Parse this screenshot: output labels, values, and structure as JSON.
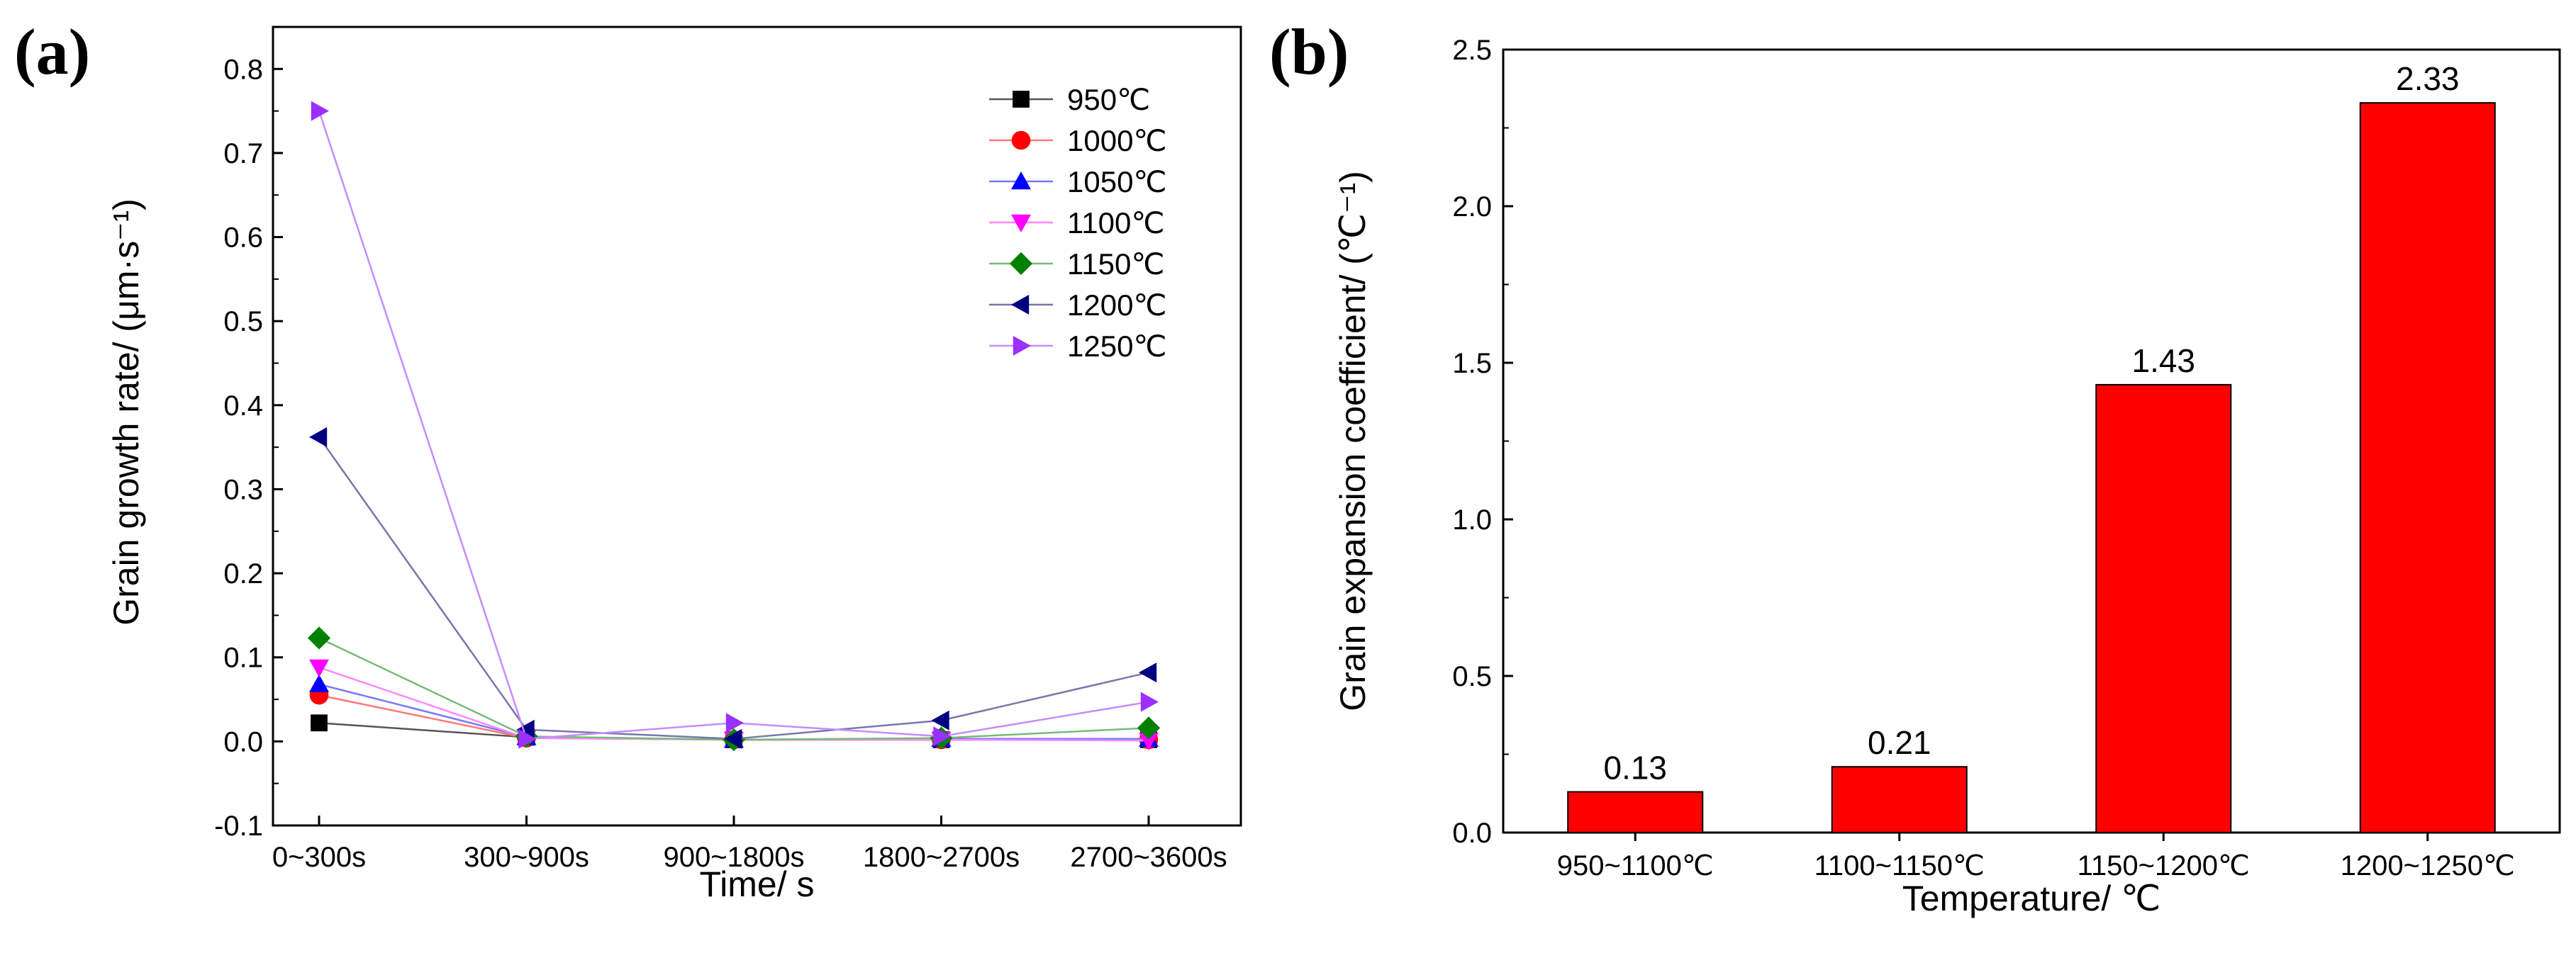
{
  "figure": {
    "panel_a_letter": "(a)",
    "panel_b_letter": "(b)"
  },
  "chart_data": [
    {
      "type": "line",
      "xlabel": "Time/ s",
      "ylabel": "Grain growth rate/ (μm·s⁻¹)",
      "categories": [
        "0~300s",
        "300~900s",
        "900~1800s",
        "1800~2700s",
        "2700~3600s"
      ],
      "ylim": [
        -0.1,
        0.85
      ],
      "yticks": [
        -0.1,
        0.0,
        0.1,
        0.2,
        0.3,
        0.4,
        0.5,
        0.6,
        0.7,
        0.8
      ],
      "ytick_labels": [
        "-0.1",
        "0.0",
        "0.1",
        "0.2",
        "0.3",
        "0.4",
        "0.5",
        "0.6",
        "0.7",
        "0.8"
      ],
      "grid": false,
      "legend_position": "top-right",
      "series": [
        {
          "name": "950℃",
          "marker": "square",
          "color": "#000000",
          "line_color": "#555555",
          "values": [
            0.022,
            0.005,
            0.002,
            0.002,
            0.002
          ]
        },
        {
          "name": "1000℃",
          "marker": "circle",
          "color": "#ff0000",
          "line_color": "#ff7777",
          "values": [
            0.055,
            0.004,
            0.002,
            0.002,
            0.002
          ]
        },
        {
          "name": "1050℃",
          "marker": "triangle-up",
          "color": "#0000ff",
          "line_color": "#7777ff",
          "values": [
            0.068,
            0.005,
            0.002,
            0.003,
            0.003
          ]
        },
        {
          "name": "1100℃",
          "marker": "triangle-down",
          "color": "#ff00ff",
          "line_color": "#ff88ff",
          "values": [
            0.088,
            0.004,
            0.002,
            0.002,
            0.001
          ]
        },
        {
          "name": "1150℃",
          "marker": "diamond",
          "color": "#008000",
          "line_color": "#77bb77",
          "values": [
            0.123,
            0.006,
            0.002,
            0.004,
            0.016
          ]
        },
        {
          "name": "1200℃",
          "marker": "triangle-left",
          "color": "#000080",
          "line_color": "#7777aa",
          "values": [
            0.362,
            0.014,
            0.003,
            0.025,
            0.082
          ]
        },
        {
          "name": "1250℃",
          "marker": "triangle-right",
          "color": "#9b30ff",
          "line_color": "#c68cff",
          "values": [
            0.75,
            0.003,
            0.022,
            0.006,
            0.047
          ]
        }
      ]
    },
    {
      "type": "bar",
      "xlabel": "Temperature/ ℃",
      "ylabel": "Grain expansion coefficient/ (℃⁻¹)",
      "categories": [
        "950~1100℃",
        "1100~1150℃",
        "1150~1200℃",
        "1200~1250℃"
      ],
      "values": [
        0.13,
        0.21,
        1.43,
        2.33
      ],
      "value_labels": [
        "0.13",
        "0.21",
        "1.43",
        "2.33"
      ],
      "ylim": [
        0.0,
        2.5
      ],
      "yticks": [
        0.0,
        0.5,
        1.0,
        1.5,
        2.0,
        2.5
      ],
      "ytick_labels": [
        "0.0",
        "0.5",
        "1.0",
        "1.5",
        "2.0",
        "2.5"
      ],
      "bar_color": "#ff0000",
      "grid": false
    }
  ]
}
